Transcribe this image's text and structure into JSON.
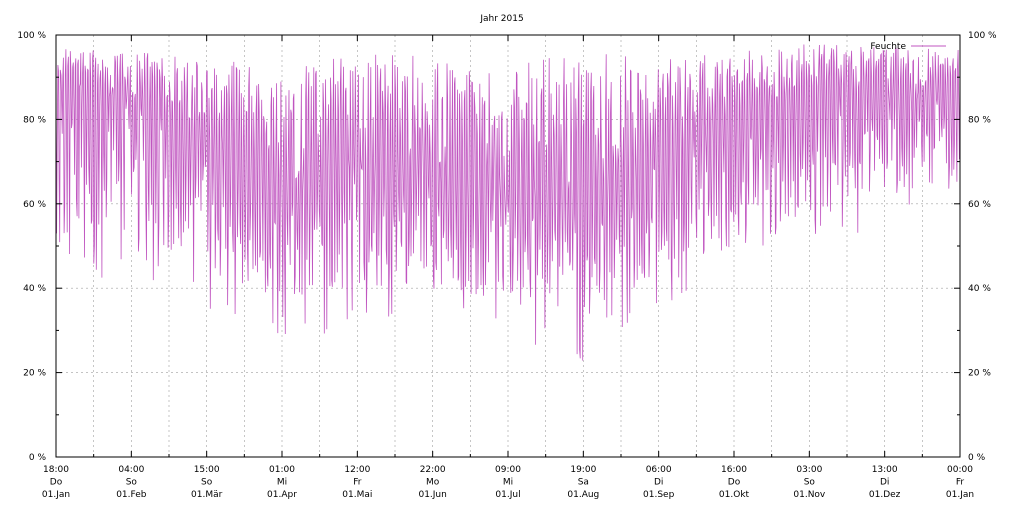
{
  "chart_data": {
    "type": "line",
    "title": "Jahr 2015",
    "xlabel": "",
    "ylabel": "",
    "ylim": [
      0,
      100
    ],
    "y_ticks": [
      "0 %",
      "20 %",
      "40 %",
      "60 %",
      "80 %",
      "100 %"
    ],
    "grid": true,
    "legend_position": "top-right",
    "x_ticks": [
      [
        "18:00",
        "Do",
        "01.Jan"
      ],
      [
        "04:00",
        "So",
        "01.Feb"
      ],
      [
        "15:00",
        "So",
        "01.Mär"
      ],
      [
        "01:00",
        "Mi",
        "01.Apr"
      ],
      [
        "12:00",
        "Fr",
        "01.Mai"
      ],
      [
        "22:00",
        "Mo",
        "01.Jun"
      ],
      [
        "09:00",
        "Mi",
        "01.Jul"
      ],
      [
        "19:00",
        "Sa",
        "01.Aug"
      ],
      [
        "06:00",
        "Di",
        "01.Sep"
      ],
      [
        "16:00",
        "Do",
        "01.Okt"
      ],
      [
        "03:00",
        "So",
        "01.Nov"
      ],
      [
        "13:00",
        "Di",
        "01.Dez"
      ],
      [
        "00:00",
        "Fr",
        "01.Jan"
      ]
    ],
    "series": [
      {
        "name": "Feuchte",
        "color": "#c055c0",
        "approx_monthly": [
          {
            "month": "01.Jan",
            "max": 97,
            "min": 36,
            "typical": 90
          },
          {
            "month": "01.Feb",
            "max": 96,
            "min": 44,
            "typical": 85
          },
          {
            "month": "01.Mär",
            "max": 95,
            "min": 34,
            "typical": 75
          },
          {
            "month": "01.Apr",
            "max": 92,
            "min": 27,
            "typical": 65
          },
          {
            "month": "01.Mai",
            "max": 96,
            "min": 31,
            "typical": 70
          },
          {
            "month": "01.Jun",
            "max": 95,
            "min": 30,
            "typical": 68
          },
          {
            "month": "01.Jul",
            "max": 93,
            "min": 29,
            "typical": 63
          },
          {
            "month": "01.Aug",
            "max": 96,
            "min": 21,
            "typical": 62
          },
          {
            "month": "01.Sep",
            "max": 96,
            "min": 35,
            "typical": 72
          },
          {
            "month": "01.Okt",
            "max": 96,
            "min": 39,
            "typical": 80
          },
          {
            "month": "01.Nov",
            "max": 98,
            "min": 44,
            "typical": 88
          },
          {
            "month": "01.Dez",
            "max": 97,
            "min": 56,
            "typical": 86
          }
        ]
      }
    ]
  }
}
